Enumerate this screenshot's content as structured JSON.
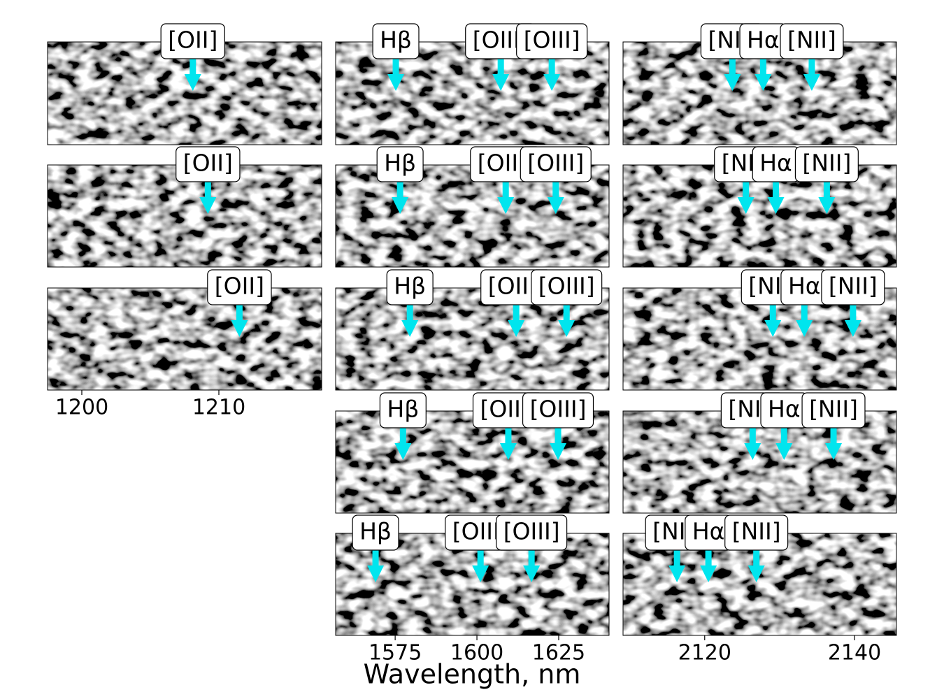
{
  "chart_data": [
    {
      "type": "image",
      "xlim": [
        1197.5,
        1217.5
      ],
      "xticks": [
        1200,
        1210
      ],
      "panels": [
        {
          "annotations": [
            {
              "label": "[OII]",
              "x": 1208.1
            }
          ]
        },
        {
          "annotations": [
            {
              "label": "[OII]",
              "x": 1209.2
            }
          ]
        },
        {
          "annotations": [
            {
              "label": "[OII]",
              "x": 1211.5
            }
          ]
        }
      ]
    },
    {
      "type": "image",
      "xlim": [
        1556.8,
        1640.4
      ],
      "xticks": [
        1575,
        1600,
        1625
      ],
      "xlabel": "Wavelength, nm",
      "panels": [
        {
          "annotations": [
            {
              "label": "Hβ",
              "x": 1575.2
            },
            {
              "label": "[OIII]",
              "x": 1607.3
            },
            {
              "label": "[OIII]",
              "x": 1622.9
            }
          ]
        },
        {
          "annotations": [
            {
              "label": "Hβ",
              "x": 1576.5
            },
            {
              "label": "[OIII]",
              "x": 1608.8
            },
            {
              "label": "[OIII]",
              "x": 1624.1
            }
          ]
        },
        {
          "annotations": [
            {
              "label": "Hβ",
              "x": 1579.5
            },
            {
              "label": "[OIII]",
              "x": 1612.0
            },
            {
              "label": "[OIII]",
              "x": 1627.4
            }
          ]
        },
        {
          "annotations": [
            {
              "label": "Hβ",
              "x": 1577.4
            },
            {
              "label": "[OIII]",
              "x": 1609.6
            },
            {
              "label": "[OIII]",
              "x": 1624.8
            }
          ]
        },
        {
          "annotations": [
            {
              "label": "Hβ",
              "x": 1569.0
            },
            {
              "label": "[OIII]",
              "x": 1601.1
            },
            {
              "label": "[OIII]",
              "x": 1616.7
            }
          ]
        }
      ]
    },
    {
      "type": "image",
      "xlim": [
        2109.1,
        2145.6
      ],
      "xticks": [
        2120,
        2140
      ],
      "panels": [
        {
          "annotations": [
            {
              "label": "[NII]",
              "x": 2123.7
            },
            {
              "label": "Hα",
              "x": 2127.8
            },
            {
              "label": "[NII]",
              "x": 2134.3
            }
          ]
        },
        {
          "annotations": [
            {
              "label": "[NII]",
              "x": 2125.5
            },
            {
              "label": "Hα",
              "x": 2129.5
            },
            {
              "label": "[NII]",
              "x": 2136.3
            }
          ]
        },
        {
          "annotations": [
            {
              "label": "[NII]",
              "x": 2129.1
            },
            {
              "label": "Hα",
              "x": 2133.3
            },
            {
              "label": "[NII]",
              "x": 2139.8
            }
          ]
        },
        {
          "annotations": [
            {
              "label": "[NII]",
              "x": 2126.4
            },
            {
              "label": "Hα",
              "x": 2130.6
            },
            {
              "label": "[NII]",
              "x": 2137.2
            }
          ]
        },
        {
          "annotations": [
            {
              "label": "[NII]",
              "x": 2116.3
            },
            {
              "label": "Hα",
              "x": 2120.5
            },
            {
              "label": "[NII]",
              "x": 2126.9
            }
          ]
        }
      ]
    }
  ]
}
